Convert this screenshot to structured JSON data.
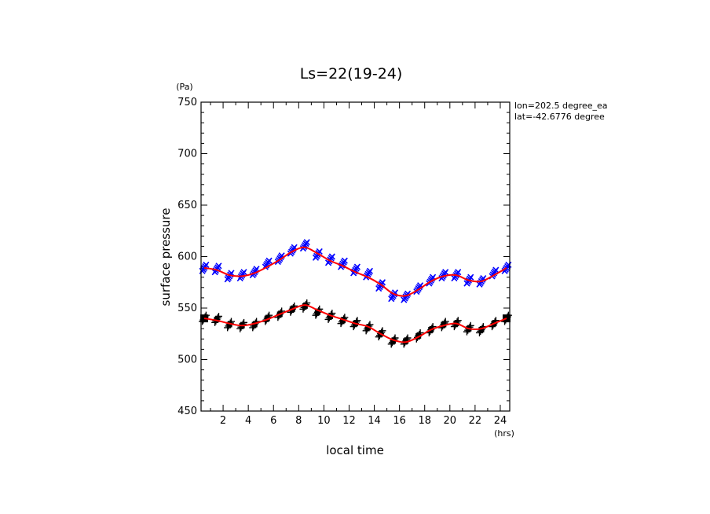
{
  "chart_data": {
    "type": "scatter",
    "title": "Ls=22(19-24)",
    "xlabel": "local time",
    "ylabel": "surface pressure",
    "xunit": "(hrs)",
    "yunit": "(Pa)",
    "xlim": [
      0.25,
      24.75
    ],
    "ylim": [
      450,
      750
    ],
    "xticks": [
      2,
      4,
      6,
      8,
      10,
      12,
      14,
      16,
      18,
      20,
      22,
      24
    ],
    "yticks": [
      450,
      500,
      550,
      600,
      650,
      700,
      750
    ],
    "annotations": [
      "lon=202.5 degree_ea",
      "lat=-42.6776 degree"
    ],
    "colors": {
      "series_upper": "#0000ff",
      "series_lower": "#000000",
      "fit": "#ff0000"
    },
    "x": [
      0.5,
      1.5,
      2.5,
      3.5,
      4.5,
      5.5,
      6.5,
      7.5,
      8.5,
      9.5,
      10.5,
      11.5,
      12.5,
      13.5,
      14.5,
      15.5,
      16.5,
      17.5,
      18.5,
      19.5,
      20.5,
      21.5,
      22.5,
      23.5,
      24.5
    ],
    "series": [
      {
        "marker": "x",
        "color": "#0000ff",
        "values": [
          589,
          588,
          581,
          582,
          585,
          593,
          598,
          606,
          611,
          602,
          597,
          593,
          587,
          583,
          572,
          562,
          561,
          569,
          577,
          582,
          582,
          577,
          576,
          584,
          589
        ],
        "fit": [
          589,
          587,
          582,
          581,
          584,
          590,
          597,
          605,
          609,
          603,
          596,
          591,
          585,
          580,
          573,
          564,
          562,
          568,
          576,
          581,
          582,
          577,
          576,
          582,
          589
        ]
      },
      {
        "marker": "+",
        "color": "#000000",
        "values": [
          540,
          539,
          534,
          533,
          534,
          540,
          544,
          549,
          552,
          546,
          542,
          538,
          535,
          531,
          525,
          518,
          518,
          523,
          529,
          534,
          535,
          530,
          529,
          535,
          540
        ],
        "fit": [
          540,
          538,
          535,
          533,
          535,
          539,
          544,
          549,
          553,
          548,
          543,
          539,
          535,
          532,
          525,
          519,
          517,
          522,
          529,
          533,
          535,
          530,
          530,
          535,
          540
        ]
      }
    ]
  }
}
